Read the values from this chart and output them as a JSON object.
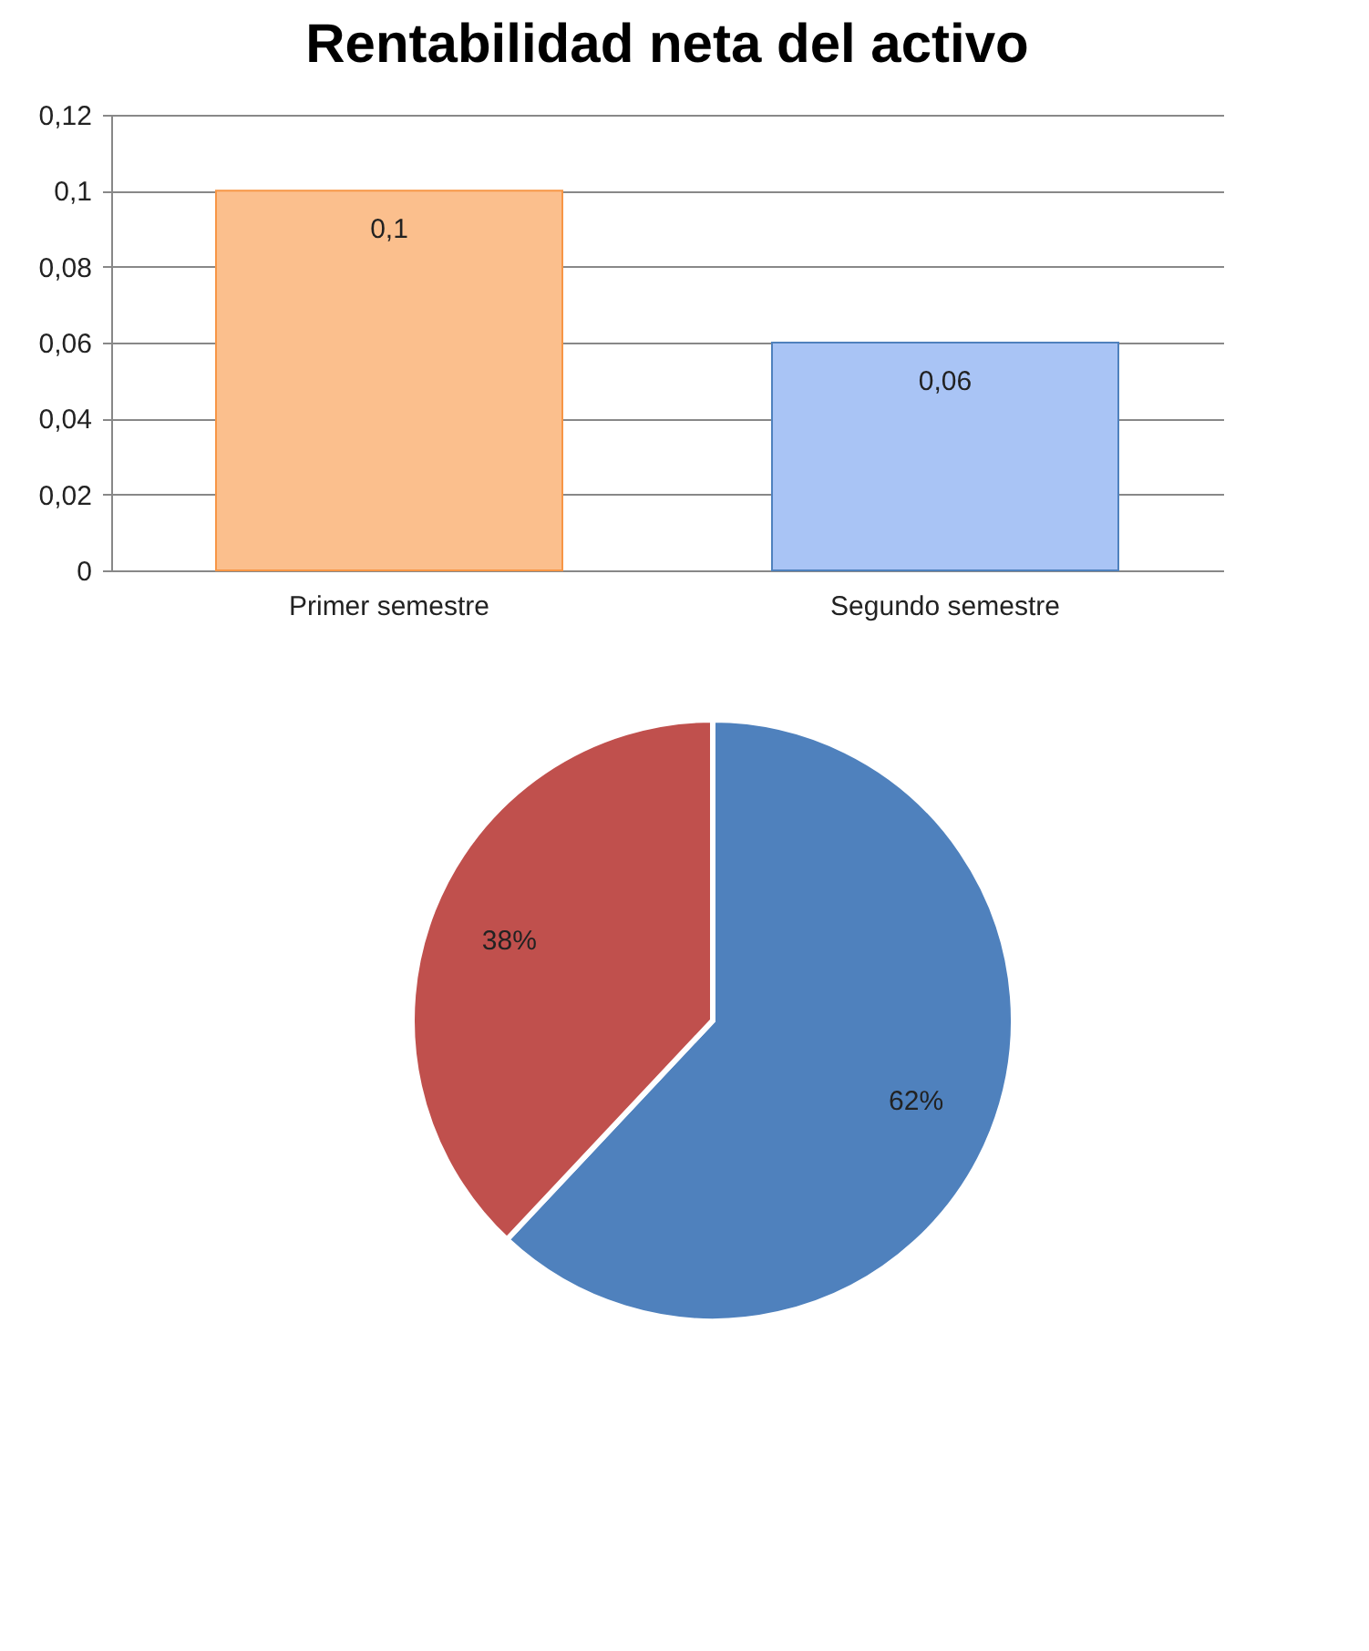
{
  "chart_data": [
    {
      "type": "bar",
      "title": "Rentabilidad neta del activo",
      "categories": [
        "Primer semestre",
        "Segundo semestre"
      ],
      "values": [
        0.1,
        0.06
      ],
      "colors": [
        "#fbbf8d",
        "#a9c4f5"
      ],
      "ylim": [
        0,
        0.12
      ],
      "yticks": [
        0,
        {
          "value": 0.02,
          "label": "0,02"
        },
        {
          "value": 0.04,
          "label": "0,04"
        },
        {
          "value": 0.06,
          "label": "0,06"
        },
        {
          "value": 0.08,
          "label": "0,08"
        },
        {
          "value": 0.1,
          "label": "0,1"
        },
        {
          "value": 0.12,
          "label": "0,12"
        }
      ],
      "grid": "y",
      "value_labels": [
        "0,1",
        "0,06"
      ]
    },
    {
      "type": "pie",
      "categories": [
        null,
        null
      ],
      "values": [
        62,
        38
      ],
      "colors": [
        "#4f81bd",
        "#c0504d"
      ],
      "value_labels": [
        "62%",
        "38%"
      ]
    }
  ]
}
